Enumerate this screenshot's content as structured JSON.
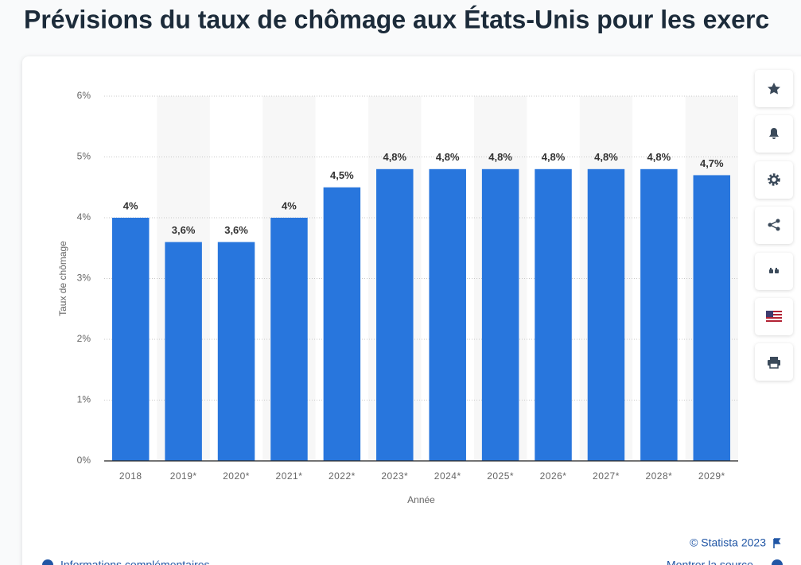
{
  "page": {
    "title": "Prévisions du taux de chômage aux États-Unis pour les exerc",
    "credit": "© Statista 2023",
    "links": [
      "Informations complémentaires",
      "Montrer la source"
    ]
  },
  "chart_data": {
    "type": "bar",
    "categories": [
      "2018",
      "2019*",
      "2020*",
      "2021*",
      "2022*",
      "2023*",
      "2024*",
      "2025*",
      "2026*",
      "2027*",
      "2028*",
      "2029*"
    ],
    "values": [
      4,
      3.6,
      3.6,
      4,
      4.5,
      4.8,
      4.8,
      4.8,
      4.8,
      4.8,
      4.8,
      4.7
    ],
    "value_labels": [
      "4%",
      "3,6%",
      "3,6%",
      "4%",
      "4,5%",
      "4,8%",
      "4,8%",
      "4,8%",
      "4,8%",
      "4,8%",
      "4,8%",
      "4,7%"
    ],
    "color": "#2876dd",
    "x_label": "Année",
    "y_label": "Taux de chômage",
    "ylim": [
      0,
      6
    ],
    "yticks": [
      {
        "value": 0,
        "label": "0%"
      },
      {
        "value": 1,
        "label": "1%"
      },
      {
        "value": 2,
        "label": "2%"
      },
      {
        "value": 3,
        "label": "3%"
      },
      {
        "value": 4,
        "label": "4%"
      },
      {
        "value": 5,
        "label": "5%"
      },
      {
        "value": 6,
        "label": "6%"
      }
    ],
    "grid": true
  }
}
